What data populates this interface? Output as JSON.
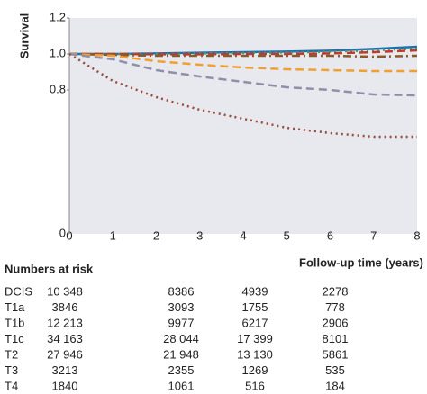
{
  "chart_data": {
    "type": "line",
    "ylabel": "Survival",
    "xlabel": "Follow-up time (years)",
    "x": [
      0,
      1,
      2,
      3,
      4,
      5,
      6,
      7,
      8
    ],
    "xlim": [
      0,
      8
    ],
    "xticks": [
      0,
      1,
      2,
      3,
      4,
      5,
      6,
      7,
      8
    ],
    "ylim": [
      0,
      1.2
    ],
    "yticks": [
      0,
      0.8,
      {
        "value": 1,
        "label": "1.0"
      },
      1.2
    ],
    "background": "#e8e9ee",
    "series": [
      {
        "color": "#1f6fb2",
        "dash": "solid",
        "values": [
          1,
          1,
          1.003,
          1.007,
          1.01,
          1.013,
          1.018,
          1.028,
          1.04
        ]
      },
      {
        "color": "#4a9a5a",
        "dash": "dotted",
        "values": [
          1,
          1,
          1,
          1.003,
          1.005,
          1.008,
          1.012,
          1.02,
          1.03
        ]
      },
      {
        "color": "#c0392b",
        "dash": "dashed",
        "values": [
          1,
          1,
          0.998,
          0.998,
          1,
          1,
          1.003,
          1.01,
          1.02
        ]
      },
      {
        "color": "#8b5a2b",
        "dash": "dashdot",
        "values": [
          1,
          0.995,
          0.99,
          0.99,
          0.99,
          0.99,
          0.99,
          0.985,
          0.99
        ]
      },
      {
        "color": "#f0a030",
        "dash": "dashed",
        "values": [
          1,
          0.99,
          0.96,
          0.94,
          0.925,
          0.915,
          0.91,
          0.905,
          0.905
        ]
      },
      {
        "color": "#8e8fa8",
        "dash": "dashed",
        "values": [
          1,
          0.97,
          0.91,
          0.875,
          0.845,
          0.815,
          0.8,
          0.775,
          0.77
        ]
      },
      {
        "color": "#9a4a3a",
        "dash": "dotted",
        "values": [
          1,
          0.85,
          0.76,
          0.69,
          0.64,
          0.59,
          0.56,
          0.54,
          0.54
        ]
      }
    ]
  },
  "risk_table": {
    "title": "Numbers at risk",
    "rows": [
      {
        "label": "DCIS",
        "values": [
          "10 348",
          "8386",
          "4939",
          "2278"
        ]
      },
      {
        "label": "T1a",
        "values": [
          "3846",
          "3093",
          "1755",
          "778"
        ]
      },
      {
        "label": "T1b",
        "values": [
          "12 213",
          "9977",
          "6217",
          "2906"
        ]
      },
      {
        "label": "T1c",
        "values": [
          "34 163",
          "28 044",
          "17 399",
          "8101"
        ]
      },
      {
        "label": "T2",
        "values": [
          "27 946",
          "21 948",
          "13 130",
          "5861"
        ]
      },
      {
        "label": "T3",
        "values": [
          "3213",
          "2355",
          "1269",
          "535"
        ]
      },
      {
        "label": "T4",
        "values": [
          "1840",
          "1061",
          "516",
          "184"
        ]
      }
    ]
  }
}
